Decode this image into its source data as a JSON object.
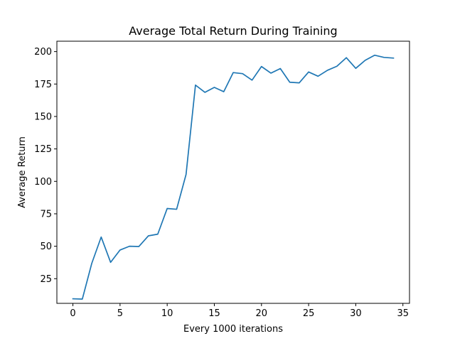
{
  "chart_data": {
    "type": "line",
    "title": "Average Total Return During Training",
    "xlabel": "Every 1000 iterations",
    "ylabel": "Average Return",
    "xlim": [
      -1.7,
      35.7
    ],
    "ylim": [
      6.0,
      208.0
    ],
    "xticks": [
      0,
      5,
      10,
      15,
      20,
      25,
      30,
      35
    ],
    "yticks": [
      25,
      50,
      75,
      100,
      125,
      150,
      175,
      200
    ],
    "grid": false,
    "legend": "none",
    "series": [
      {
        "color": "#1f77b4",
        "x": [
          0,
          1,
          2,
          3,
          4,
          5,
          6,
          7,
          8,
          9,
          10,
          11,
          12,
          13,
          14,
          15,
          16,
          17,
          18,
          19,
          20,
          21,
          22,
          23,
          24,
          25,
          26,
          27,
          28,
          29,
          30,
          31,
          32,
          33,
          34
        ],
        "y": [
          9.5,
          9.3,
          36.8,
          57.1,
          37.6,
          47.1,
          50.0,
          49.8,
          58.0,
          59.3,
          79.1,
          78.5,
          105.3,
          174.2,
          168.6,
          172.4,
          169.1,
          183.8,
          183.0,
          178.0,
          188.5,
          183.4,
          186.9,
          176.4,
          175.9,
          184.3,
          181.0,
          185.6,
          188.7,
          195.3,
          187.1,
          193.3,
          197.2,
          195.5,
          195.0
        ]
      }
    ]
  }
}
